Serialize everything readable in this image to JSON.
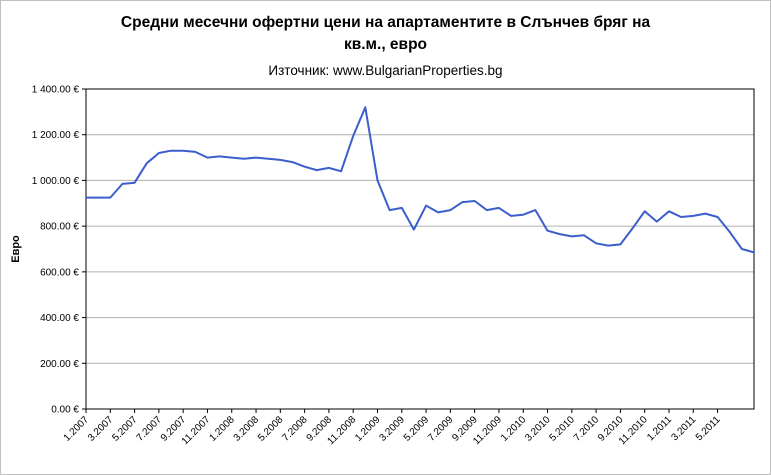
{
  "page": {
    "title": "Средни месечни офертни цени на апартаментите в Слънчев бряг на кв.м., евро",
    "source": "Източник: www.BulgarianProperties.bg"
  },
  "chart_data": {
    "type": "line",
    "title": "Средни месечни офертни цени на апартаментите в Слънчев бряг на кв.м., евро",
    "source": "Източник: www.BulgarianProperties.bg",
    "ylabel": "Евро",
    "ylim": [
      0,
      1400
    ],
    "ytick_step": 200,
    "ytick_labels": [
      "0.00 €",
      "200.00 €",
      "400.00 €",
      "600.00 €",
      "800.00 €",
      "1 000.00 €",
      "1 200.00 €",
      "1 400.00 €"
    ],
    "grid": true,
    "legend": "none",
    "line_color": "#3b5ecc",
    "gridline_color": "#b0b0b0",
    "x": [
      "1.2007",
      "2.2007",
      "3.2007",
      "4.2007",
      "5.2007",
      "6.2007",
      "7.2007",
      "8.2007",
      "9.2007",
      "10.2007",
      "11.2007",
      "12.2007",
      "1.2008",
      "2.2008",
      "3.2008",
      "4.2008",
      "5.2008",
      "6.2008",
      "7.2008",
      "8.2008",
      "9.2008",
      "10.2008",
      "11.2008",
      "12.2008",
      "1.2009",
      "2.2009",
      "3.2009",
      "4.2009",
      "5.2009",
      "6.2009",
      "7.2009",
      "8.2009",
      "9.2009",
      "10.2009",
      "11.2009",
      "12.2009",
      "1.2010",
      "2.2010",
      "3.2010",
      "4.2010",
      "5.2010",
      "6.2010",
      "7.2010",
      "8.2010",
      "9.2010",
      "10.2010",
      "11.2010",
      "12.2010",
      "1.2011",
      "2.2011",
      "3.2011",
      "4.2011",
      "5.2011",
      "6.2011",
      "7.2011",
      "8.2011"
    ],
    "xtick_labels": [
      "1.2007",
      "3.2007",
      "5.2007",
      "7.2007",
      "9.2007",
      "11.2007",
      "1.2008",
      "3.2008",
      "5.2008",
      "7.2008",
      "9.2008",
      "11.2008",
      "1.2009",
      "3.2009",
      "5.2009",
      "7.2009",
      "9.2009",
      "11.2009",
      "1.2010",
      "3.2010",
      "5.2010",
      "7.2010",
      "9.2010",
      "11.2010",
      "1.2011",
      "3.2011",
      "5.2011"
    ],
    "values": [
      925,
      925,
      925,
      985,
      990,
      1075,
      1120,
      1130,
      1130,
      1125,
      1100,
      1105,
      1100,
      1095,
      1100,
      1095,
      1090,
      1080,
      1060,
      1045,
      1055,
      1040,
      1195,
      1320,
      1000,
      870,
      880,
      785,
      890,
      860,
      870,
      905,
      910,
      870,
      880,
      845,
      850,
      870,
      780,
      765,
      755,
      760,
      725,
      715,
      720,
      790,
      865,
      820,
      865,
      840,
      845,
      855,
      840,
      775,
      700,
      685
    ]
  }
}
